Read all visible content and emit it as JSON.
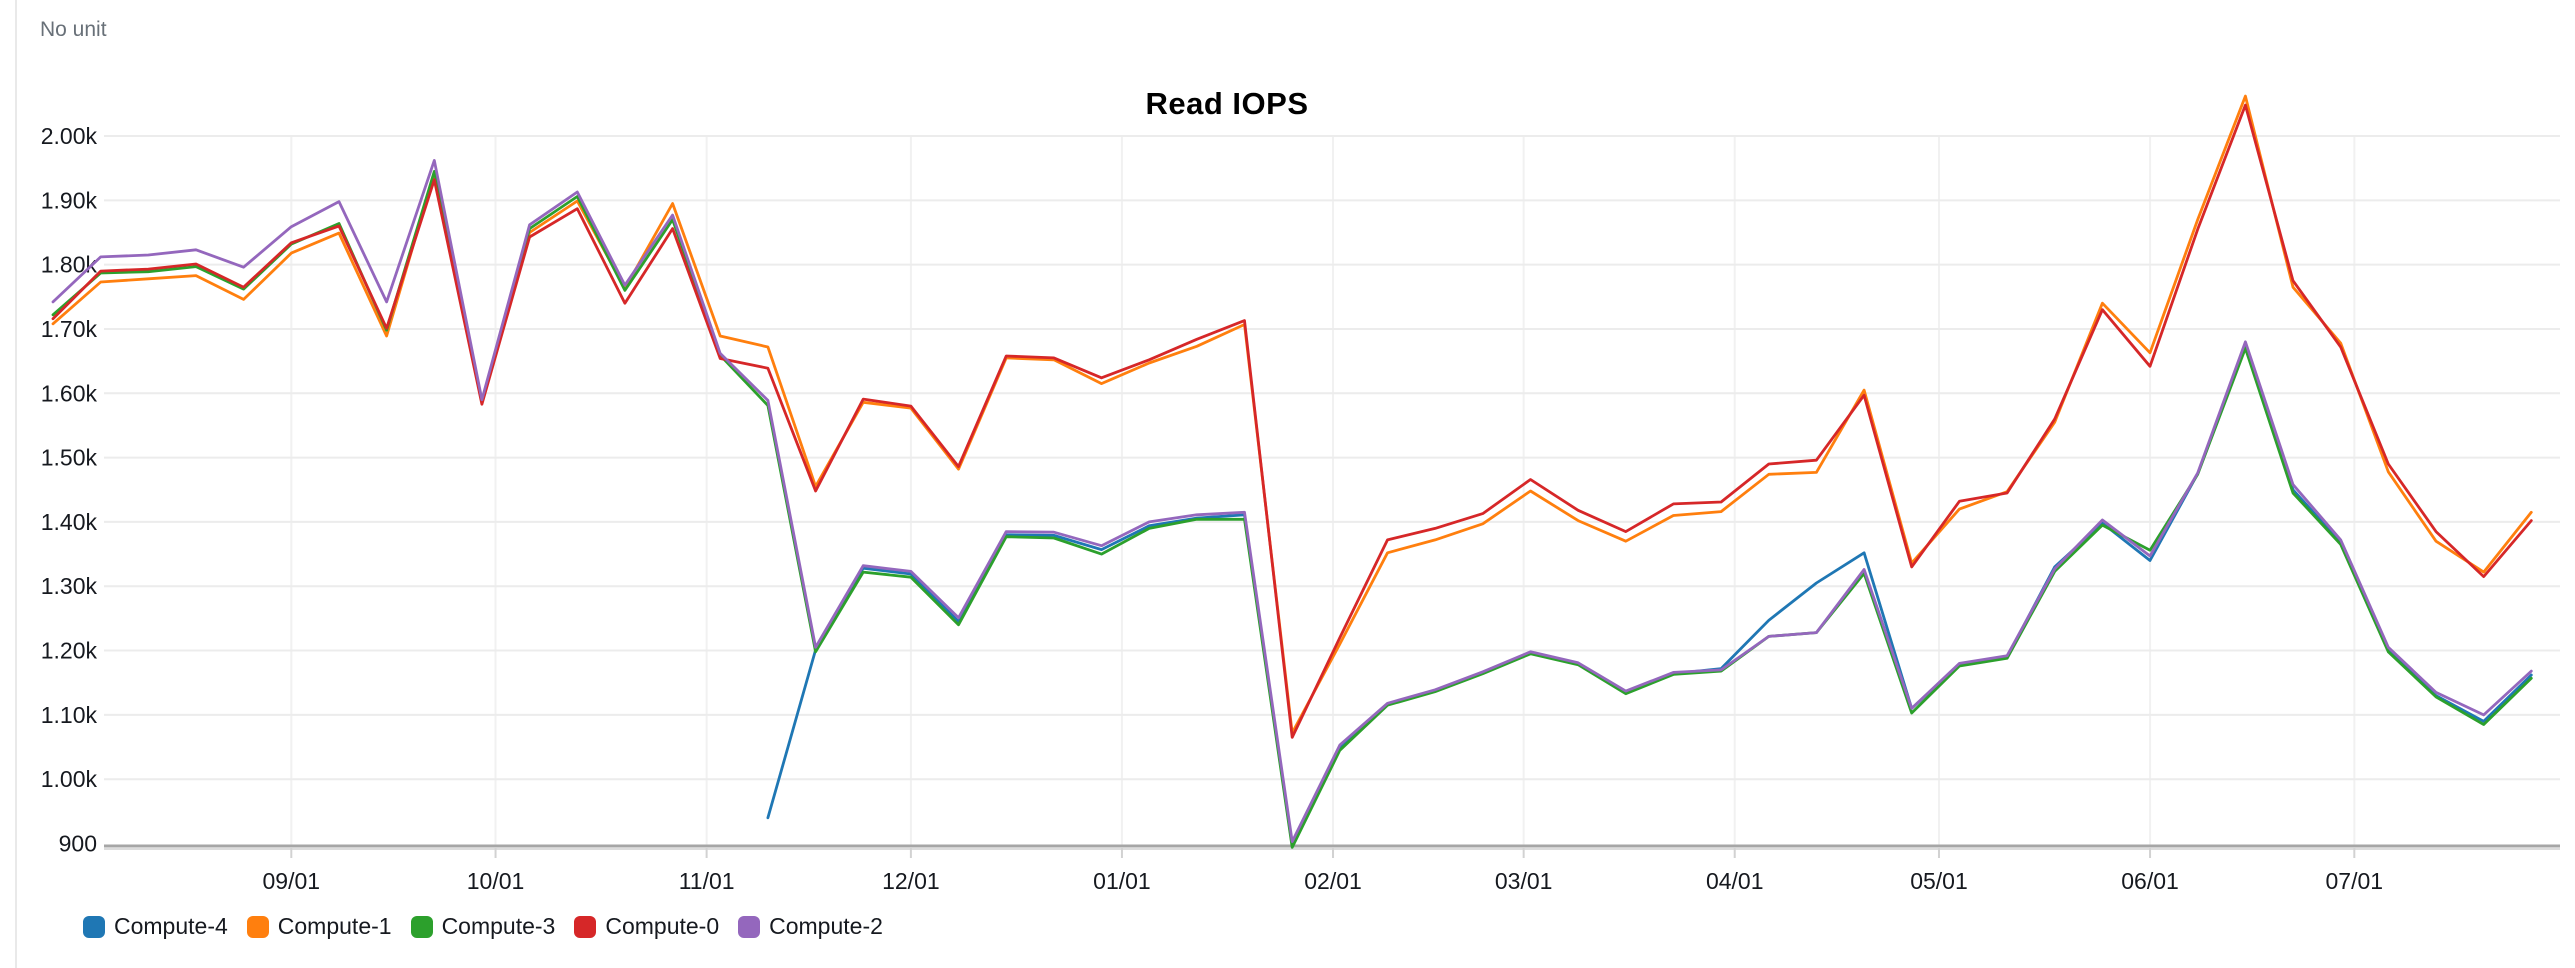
{
  "chart_data": {
    "type": "line",
    "title": "Read IOPS",
    "unit_label": "No unit",
    "grid": true,
    "legend_position": "bottom-left",
    "ylim": [
      900,
      2000
    ],
    "y_ticks": [
      {
        "label": "2.00k",
        "value": 2000
      },
      {
        "label": "1.90k",
        "value": 1900
      },
      {
        "label": "1.80k",
        "value": 1800
      },
      {
        "label": "1.70k",
        "value": 1700
      },
      {
        "label": "1.60k",
        "value": 1600
      },
      {
        "label": "1.50k",
        "value": 1500
      },
      {
        "label": "1.40k",
        "value": 1400
      },
      {
        "label": "1.30k",
        "value": 1300
      },
      {
        "label": "1.20k",
        "value": 1200
      },
      {
        "label": "1.10k",
        "value": 1100
      },
      {
        "label": "1.00k",
        "value": 1000
      },
      {
        "label": "900",
        "value": 900
      }
    ],
    "x_ticks": [
      {
        "label": "09/01",
        "day": 35
      },
      {
        "label": "10/01",
        "day": 65
      },
      {
        "label": "11/01",
        "day": 96
      },
      {
        "label": "12/01",
        "day": 126
      },
      {
        "label": "01/01",
        "day": 157
      },
      {
        "label": "02/01",
        "day": 188
      },
      {
        "label": "03/01",
        "day": 216
      },
      {
        "label": "04/01",
        "day": 247
      },
      {
        "label": "05/01",
        "day": 277
      },
      {
        "label": "06/01",
        "day": 308
      },
      {
        "label": "07/01",
        "day": 338
      }
    ],
    "x_step_days": 7,
    "series": [
      {
        "name": "Compute-4",
        "color": "#1f77b4",
        "start_week": 15,
        "values": [
          940,
          1201,
          1328,
          1319,
          1245,
          1380,
          1379,
          1357,
          1394,
          1406,
          1411,
          897,
          1048,
          1116,
          1137,
          1165,
          1196,
          1179,
          1134,
          1164,
          1172,
          1247,
          1305,
          1352,
          1110,
          1178,
          1190,
          1330,
          1398,
          1340,
          1475,
          1672,
          1450,
          1368,
          1200,
          1130,
          1090,
          1162
        ]
      },
      {
        "name": "Compute-1",
        "color": "#ff7f0e",
        "start_week": 0,
        "values": [
          1708,
          1773,
          1778,
          1783,
          1746,
          1818,
          1849,
          1689,
          1941,
          1586,
          1850,
          1899,
          1763,
          1895,
          1689,
          1672,
          1455,
          1586,
          1577,
          1482,
          1655,
          1652,
          1615,
          1647,
          1673,
          1707,
          1072,
          1210,
          1352,
          1372,
          1397,
          1448,
          1402,
          1370,
          1410,
          1416,
          1474,
          1477,
          1605,
          1336,
          1420,
          1447,
          1555,
          1740,
          1663,
          1870,
          2062,
          1765,
          1678,
          1478,
          1370,
          1322,
          1415
        ]
      },
      {
        "name": "Compute-3",
        "color": "#2ca02c",
        "start_week": 0,
        "values": [
          1722,
          1787,
          1789,
          1797,
          1762,
          1832,
          1864,
          1698,
          1945,
          1588,
          1856,
          1906,
          1760,
          1870,
          1659,
          1581,
          1198,
          1322,
          1314,
          1240,
          1377,
          1375,
          1350,
          1390,
          1404,
          1404,
          894,
          1045,
          1115,
          1136,
          1164,
          1195,
          1178,
          1133,
          1163,
          1168,
          1222,
          1228,
          1320,
          1103,
          1176,
          1188,
          1323,
          1395,
          1356,
          1474,
          1670,
          1445,
          1365,
          1198,
          1128,
          1085,
          1157
        ]
      },
      {
        "name": "Compute-0",
        "color": "#d62728",
        "start_week": 0,
        "values": [
          1716,
          1790,
          1793,
          1801,
          1765,
          1834,
          1860,
          1701,
          1932,
          1583,
          1843,
          1887,
          1740,
          1856,
          1654,
          1639,
          1448,
          1591,
          1580,
          1486,
          1658,
          1655,
          1624,
          1652,
          1684,
          1713,
          1065,
          1220,
          1372,
          1390,
          1413,
          1466,
          1418,
          1385,
          1428,
          1431,
          1490,
          1496,
          1597,
          1330,
          1432,
          1445,
          1560,
          1730,
          1642,
          1855,
          2048,
          1775,
          1672,
          1490,
          1385,
          1315,
          1402
        ]
      },
      {
        "name": "Compute-2",
        "color": "#9467bd",
        "start_week": 0,
        "values": [
          1742,
          1812,
          1815,
          1823,
          1796,
          1859,
          1898,
          1742,
          1962,
          1590,
          1862,
          1913,
          1768,
          1877,
          1662,
          1589,
          1205,
          1332,
          1323,
          1251,
          1385,
          1384,
          1363,
          1400,
          1411,
          1415,
          903,
          1053,
          1118,
          1139,
          1167,
          1198,
          1181,
          1137,
          1166,
          1170,
          1222,
          1228,
          1326,
          1110,
          1180,
          1192,
          1327,
          1403,
          1347,
          1476,
          1680,
          1458,
          1372,
          1205,
          1135,
          1100,
          1168
        ]
      }
    ]
  }
}
